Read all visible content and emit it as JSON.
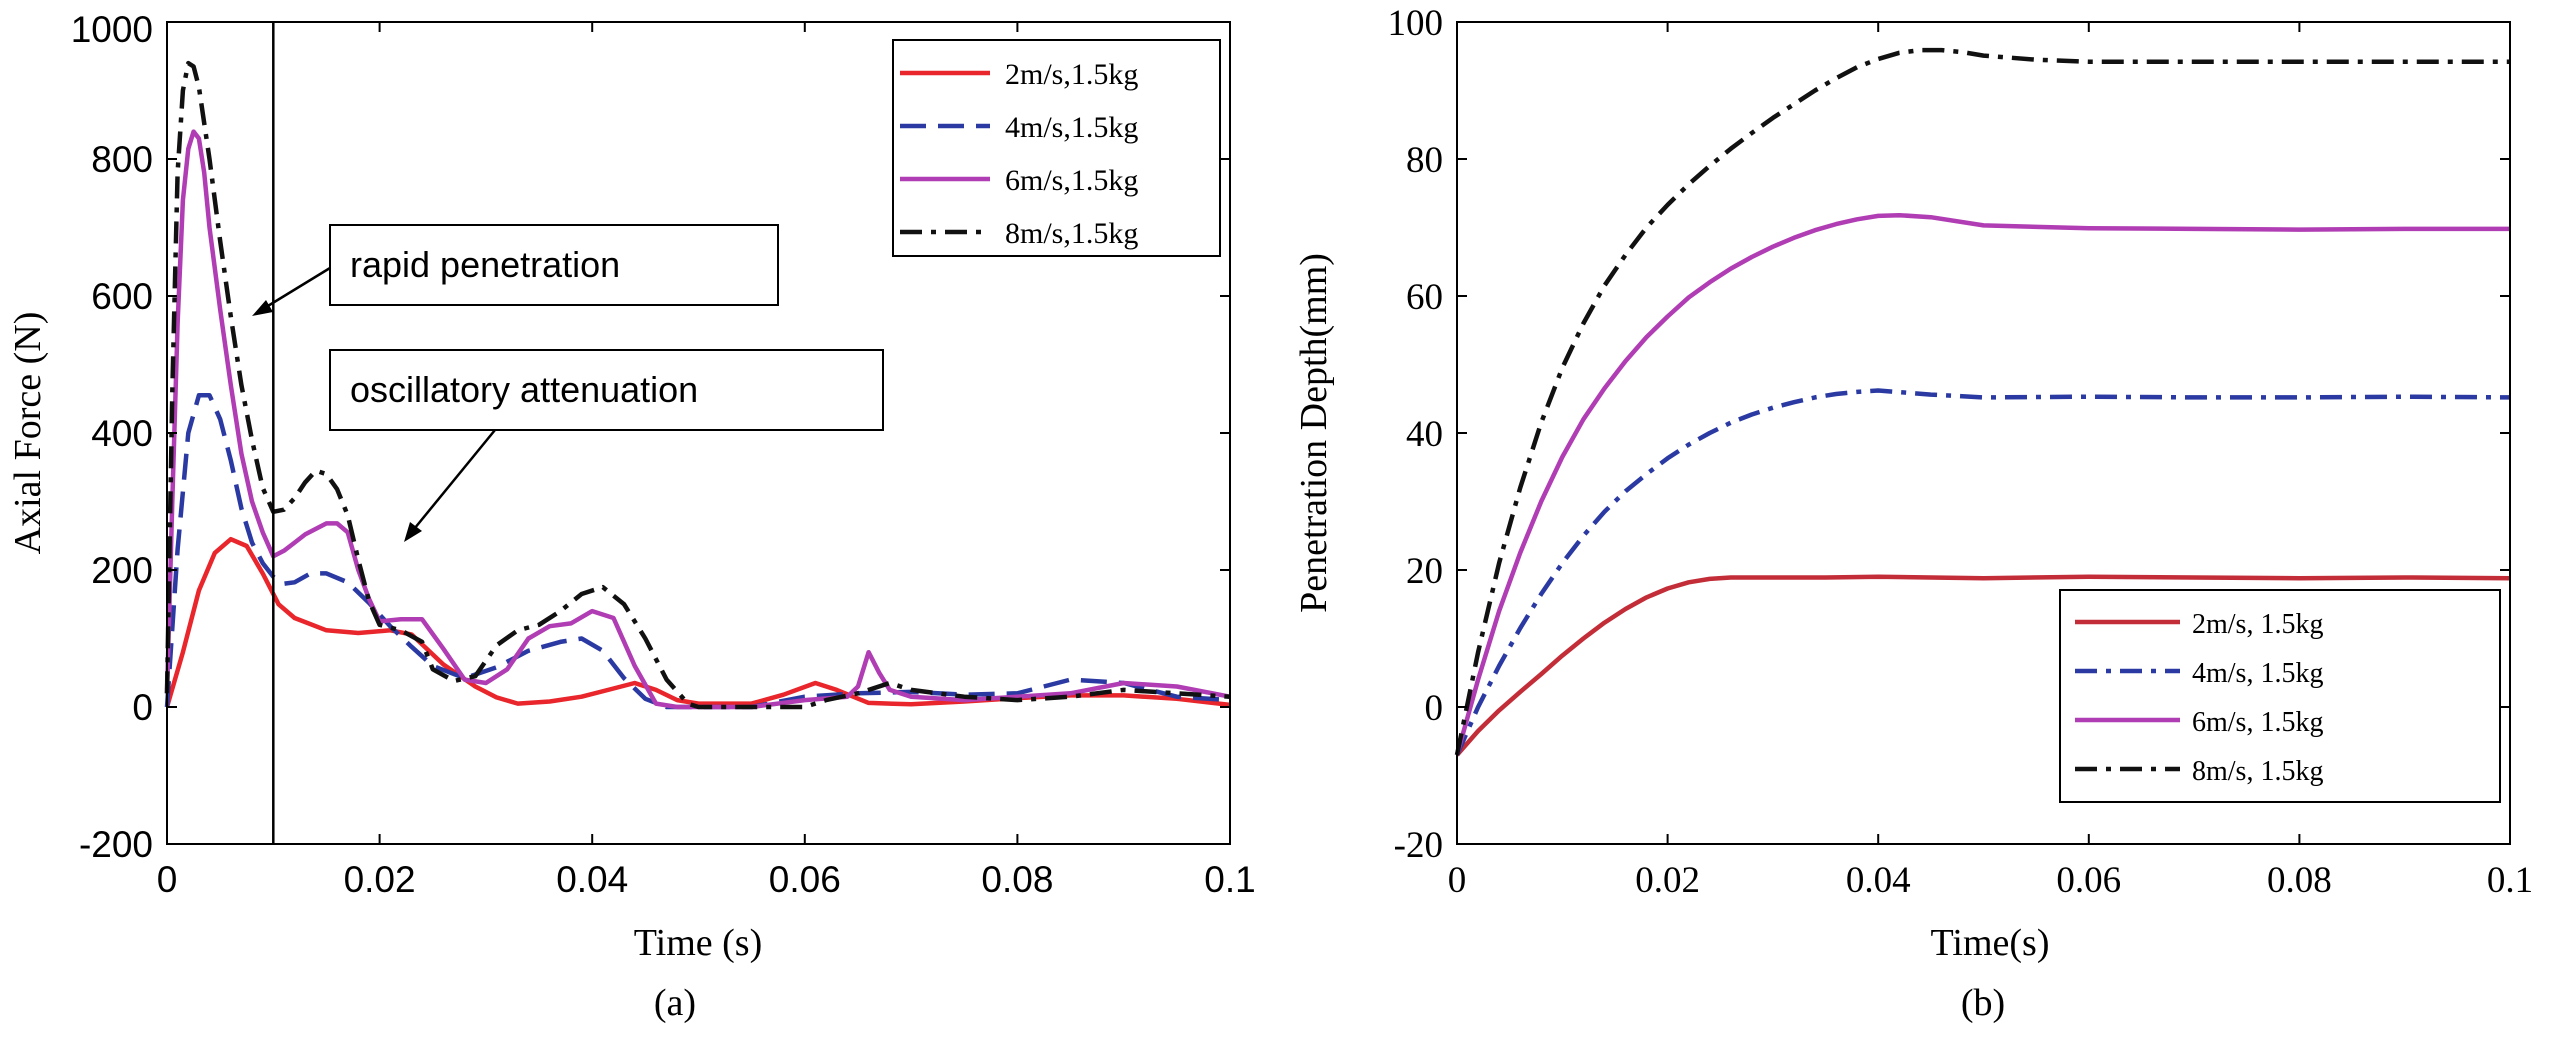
{
  "chart_data": [
    {
      "type": "line",
      "panel_label": "(a)",
      "title": "",
      "xlabel": "Time (s)",
      "ylabel": "Axial Force (N)",
      "xlim": [
        0,
        0.1
      ],
      "ylim": [
        -200,
        1000
      ],
      "xticks": [
        0,
        0.02,
        0.04,
        0.06,
        0.08,
        0.1
      ],
      "xtick_labels": [
        "0",
        "0.02",
        "0.04",
        "0.06",
        "0.08",
        "0.1"
      ],
      "yticks": [
        -200,
        0,
        200,
        400,
        600,
        800,
        1000
      ],
      "ytick_labels": [
        "-200",
        "0",
        "200",
        "400",
        "600",
        "800",
        "1000"
      ],
      "legend_position": "top-right",
      "vline_x": 0.01,
      "annotations": [
        {
          "text": "rapid penetration",
          "arrow_to": [
            0.0082,
            580
          ]
        },
        {
          "text": "oscillatory attenuation",
          "arrow_to": [
            0.0225,
            240
          ]
        }
      ],
      "series": [
        {
          "name": "2m/s,1.5kg",
          "color": "#e8262b",
          "dash": "solid",
          "x": [
            0,
            0.0015,
            0.003,
            0.0045,
            0.006,
            0.0075,
            0.009,
            0.0105,
            0.012,
            0.015,
            0.018,
            0.021,
            0.023,
            0.026,
            0.029,
            0.031,
            0.033,
            0.036,
            0.039,
            0.042,
            0.044,
            0.046,
            0.048,
            0.05,
            0.055,
            0.058,
            0.061,
            0.063,
            0.066,
            0.07,
            0.075,
            0.08,
            0.085,
            0.09,
            0.095,
            0.1
          ],
          "y": [
            0,
            80,
            170,
            225,
            245,
            235,
            195,
            150,
            130,
            112,
            108,
            112,
            106,
            62,
            30,
            14,
            5,
            8,
            15,
            27,
            35,
            25,
            10,
            5,
            5,
            18,
            35,
            25,
            6,
            4,
            8,
            13,
            17,
            17,
            12,
            3
          ]
        },
        {
          "name": "4m/s,1.5kg",
          "color": "#2a3aa2",
          "dash": "dash",
          "x": [
            0,
            0.001,
            0.002,
            0.003,
            0.004,
            0.005,
            0.006,
            0.007,
            0.008,
            0.009,
            0.01,
            0.011,
            0.012,
            0.0135,
            0.015,
            0.017,
            0.019,
            0.021,
            0.023,
            0.025,
            0.028,
            0.031,
            0.034,
            0.037,
            0.039,
            0.041,
            0.043,
            0.045,
            0.047,
            0.05,
            0.055,
            0.06,
            0.065,
            0.07,
            0.075,
            0.08,
            0.085,
            0.09,
            0.095,
            0.1
          ],
          "y": [
            0,
            230,
            400,
            455,
            455,
            420,
            360,
            290,
            240,
            210,
            190,
            180,
            182,
            195,
            195,
            182,
            152,
            118,
            88,
            60,
            42,
            58,
            82,
            95,
            100,
            82,
            42,
            12,
            0,
            0,
            0,
            15,
            20,
            22,
            18,
            20,
            40,
            35,
            15,
            10
          ]
        },
        {
          "name": "6m/s,1.5kg",
          "color": "#b03db3",
          "dash": "solid",
          "x": [
            0,
            0.0005,
            0.001,
            0.0015,
            0.002,
            0.0025,
            0.003,
            0.0035,
            0.004,
            0.005,
            0.006,
            0.007,
            0.008,
            0.009,
            0.01,
            0.011,
            0.012,
            0.013,
            0.014,
            0.015,
            0.016,
            0.017,
            0.018,
            0.019,
            0.02,
            0.022,
            0.024,
            0.026,
            0.028,
            0.03,
            0.032,
            0.034,
            0.036,
            0.038,
            0.04,
            0.042,
            0.044,
            0.046,
            0.048,
            0.05,
            0.055,
            0.06,
            0.064,
            0.065,
            0.066,
            0.067,
            0.068,
            0.07,
            0.075,
            0.08,
            0.085,
            0.09,
            0.095,
            0.1
          ],
          "y": [
            20,
            300,
            560,
            740,
            815,
            840,
            830,
            780,
            700,
            580,
            470,
            370,
            300,
            255,
            220,
            228,
            240,
            252,
            260,
            268,
            268,
            255,
            200,
            158,
            125,
            128,
            128,
            85,
            40,
            35,
            55,
            100,
            118,
            122,
            140,
            130,
            60,
            5,
            0,
            0,
            0,
            10,
            15,
            30,
            80,
            50,
            25,
            15,
            10,
            15,
            20,
            35,
            30,
            15
          ]
        },
        {
          "name": "8m/s,1.5kg",
          "color": "#111111",
          "dash": "dashdot",
          "x": [
            0,
            0.0005,
            0.001,
            0.0015,
            0.002,
            0.0025,
            0.003,
            0.004,
            0.005,
            0.006,
            0.007,
            0.008,
            0.009,
            0.01,
            0.011,
            0.012,
            0.013,
            0.014,
            0.015,
            0.016,
            0.017,
            0.018,
            0.019,
            0.02,
            0.022,
            0.024,
            0.025,
            0.027,
            0.029,
            0.031,
            0.033,
            0.035,
            0.037,
            0.039,
            0.041,
            0.043,
            0.045,
            0.047,
            0.049,
            0.05,
            0.055,
            0.06,
            0.062,
            0.065,
            0.068,
            0.07,
            0.075,
            0.08,
            0.085,
            0.09,
            0.095,
            0.1
          ],
          "y": [
            20,
            460,
            780,
            900,
            940,
            935,
            905,
            800,
            680,
            570,
            470,
            390,
            320,
            285,
            288,
            305,
            328,
            345,
            340,
            318,
            280,
            215,
            155,
            120,
            112,
            95,
            55,
            38,
            45,
            90,
            112,
            120,
            140,
            165,
            175,
            150,
            100,
            40,
            5,
            0,
            0,
            0,
            10,
            20,
            35,
            25,
            15,
            10,
            15,
            25,
            20,
            15
          ]
        }
      ]
    },
    {
      "type": "line",
      "panel_label": "(b)",
      "title": "",
      "xlabel": "Time(s)",
      "ylabel": "Penetration Depth(mm)",
      "xlim": [
        0,
        0.1
      ],
      "ylim": [
        -20,
        100
      ],
      "xticks": [
        0,
        0.02,
        0.04,
        0.06,
        0.08,
        0.1
      ],
      "xtick_labels": [
        "0",
        "0.02",
        "0.04",
        "0.06",
        "0.08",
        "0.1"
      ],
      "yticks": [
        -20,
        0,
        20,
        40,
        60,
        80,
        100
      ],
      "ytick_labels": [
        "-20",
        "0",
        "20",
        "40",
        "60",
        "80",
        "100"
      ],
      "legend_position": "bottom-right",
      "series": [
        {
          "name": "2m/s, 1.5kg",
          "color": "#c22d38",
          "dash": "solid",
          "x": [
            0,
            0.002,
            0.004,
            0.006,
            0.008,
            0.01,
            0.012,
            0.014,
            0.016,
            0.018,
            0.02,
            0.022,
            0.024,
            0.026,
            0.028,
            0.03,
            0.035,
            0.04,
            0.05,
            0.06,
            0.07,
            0.08,
            0.09,
            0.1
          ],
          "y": [
            -7,
            -3.5,
            -0.5,
            2.2,
            4.8,
            7.5,
            10,
            12.3,
            14.3,
            16,
            17.3,
            18.2,
            18.7,
            18.9,
            18.9,
            18.9,
            18.9,
            19,
            18.8,
            19,
            18.9,
            18.8,
            18.9,
            18.8
          ]
        },
        {
          "name": "4m/s, 1.5kg",
          "color": "#2a3aa2",
          "dash": "dashdot",
          "x": [
            0,
            0.002,
            0.004,
            0.006,
            0.008,
            0.01,
            0.012,
            0.014,
            0.016,
            0.018,
            0.02,
            0.022,
            0.024,
            0.026,
            0.028,
            0.03,
            0.032,
            0.034,
            0.036,
            0.038,
            0.04,
            0.045,
            0.05,
            0.06,
            0.07,
            0.08,
            0.09,
            0.1
          ],
          "y": [
            -7,
            0,
            6,
            11.5,
            16.5,
            21,
            25,
            28.5,
            31.5,
            34,
            36.3,
            38.3,
            40,
            41.5,
            42.7,
            43.7,
            44.5,
            45.2,
            45.7,
            46,
            46.2,
            45.6,
            45.2,
            45.3,
            45.2,
            45.2,
            45.3,
            45.2
          ]
        },
        {
          "name": "6m/s, 1.5kg",
          "color": "#b03db3",
          "dash": "solid",
          "x": [
            0,
            0.002,
            0.004,
            0.006,
            0.008,
            0.01,
            0.012,
            0.014,
            0.016,
            0.018,
            0.02,
            0.022,
            0.024,
            0.026,
            0.028,
            0.03,
            0.032,
            0.034,
            0.036,
            0.038,
            0.04,
            0.042,
            0.045,
            0.05,
            0.06,
            0.07,
            0.08,
            0.09,
            0.1
          ],
          "y": [
            -7,
            4,
            14,
            22.5,
            30,
            36.5,
            42,
            46.5,
            50.5,
            54,
            57,
            59.8,
            62,
            64,
            65.7,
            67.2,
            68.5,
            69.6,
            70.5,
            71.2,
            71.7,
            71.8,
            71.5,
            70.3,
            69.9,
            69.8,
            69.7,
            69.8,
            69.8
          ]
        },
        {
          "name": "8m/s, 1.5kg",
          "color": "#111111",
          "dash": "dashdot",
          "x": [
            0,
            0.002,
            0.004,
            0.006,
            0.008,
            0.01,
            0.012,
            0.014,
            0.016,
            0.018,
            0.02,
            0.022,
            0.024,
            0.026,
            0.028,
            0.03,
            0.032,
            0.034,
            0.036,
            0.038,
            0.04,
            0.042,
            0.044,
            0.046,
            0.048,
            0.05,
            0.055,
            0.06,
            0.07,
            0.08,
            0.09,
            0.1
          ],
          "y": [
            -7,
            8,
            21,
            32,
            41.5,
            49.5,
            56,
            61.5,
            66,
            70,
            73.3,
            76.3,
            79,
            81.5,
            83.8,
            86,
            88,
            90,
            91.8,
            93.4,
            94.6,
            95.5,
            95.9,
            95.9,
            95.6,
            95.1,
            94.5,
            94.2,
            94.2,
            94.2,
            94.2,
            94.2
          ]
        }
      ]
    }
  ]
}
